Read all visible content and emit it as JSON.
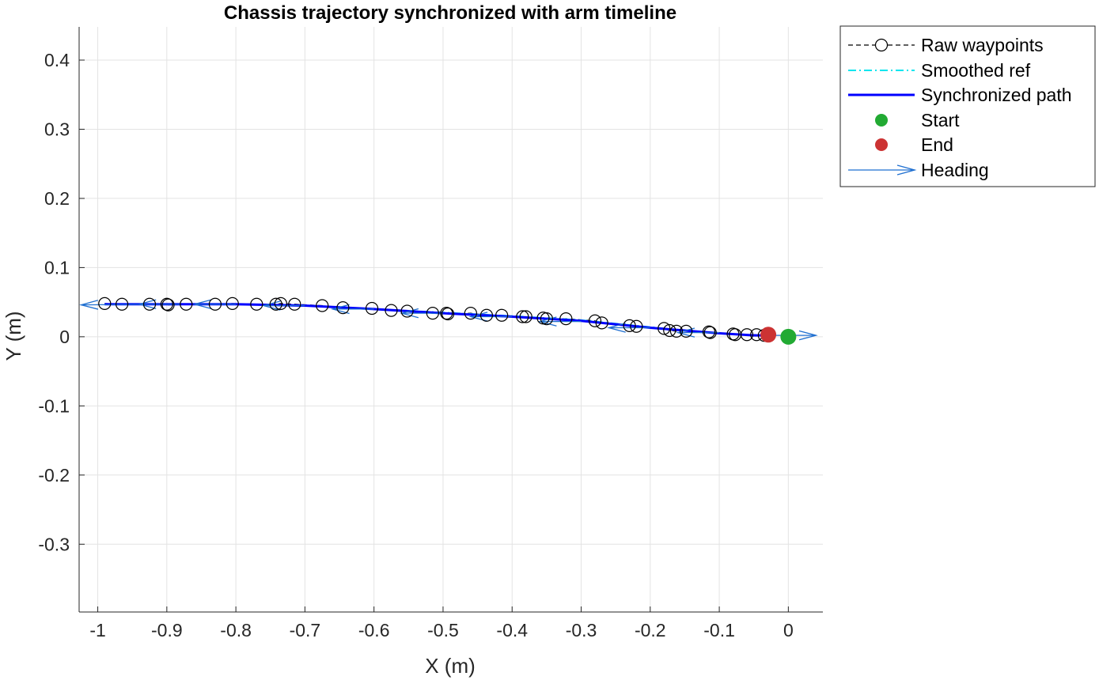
{
  "chart_data": {
    "type": "line",
    "title": "Chassis trajectory synchronized with arm timeline",
    "xlabel": "X (m)",
    "ylabel": "Y (m)",
    "xlim": [
      -1.027,
      0.05
    ],
    "ylim": [
      -0.398,
      0.448
    ],
    "xticks": [
      -1,
      -0.9,
      -0.8,
      -0.7,
      -0.6,
      -0.5,
      -0.4,
      -0.3,
      -0.2,
      -0.1,
      0
    ],
    "xtick_labels": [
      "-1",
      "-0.9",
      "-0.8",
      "-0.7",
      "-0.6",
      "-0.5",
      "-0.4",
      "-0.3",
      "-0.2",
      "-0.1",
      "0"
    ],
    "yticks": [
      -0.3,
      -0.2,
      -0.1,
      0,
      0.1,
      0.2,
      0.3,
      0.4
    ],
    "ytick_labels": [
      "-0.3",
      "-0.2",
      "-0.1",
      "0",
      "0.1",
      "0.2",
      "0.3",
      "0.4"
    ],
    "grid": true,
    "legend_position": "outside-top-right",
    "series": [
      {
        "name": "Raw waypoints",
        "style": "dashed-circle-markers",
        "color": "#000000",
        "x": [
          -0.99,
          -0.965,
          -0.925,
          -0.9,
          -0.898,
          -0.872,
          -0.83,
          -0.805,
          -0.77,
          -0.742,
          -0.735,
          -0.715,
          -0.675,
          -0.645,
          -0.603,
          -0.575,
          -0.552,
          -0.515,
          -0.495,
          -0.493,
          -0.46,
          -0.437,
          -0.415,
          -0.385,
          -0.38,
          -0.355,
          -0.35,
          -0.322,
          -0.28,
          -0.27,
          -0.23,
          -0.22,
          -0.18,
          -0.172,
          -0.162,
          -0.148,
          -0.115,
          -0.113,
          -0.08,
          -0.077,
          -0.06,
          -0.046,
          -0.035
        ],
        "y": [
          0.048,
          0.047,
          0.047,
          0.047,
          0.046,
          0.047,
          0.047,
          0.048,
          0.047,
          0.047,
          0.048,
          0.047,
          0.045,
          0.042,
          0.041,
          0.038,
          0.037,
          0.034,
          0.034,
          0.033,
          0.034,
          0.031,
          0.031,
          0.029,
          0.029,
          0.027,
          0.026,
          0.026,
          0.023,
          0.02,
          0.016,
          0.015,
          0.012,
          0.009,
          0.008,
          0.008,
          0.007,
          0.006,
          0.004,
          0.003,
          0.003,
          0.003,
          0.002
        ]
      },
      {
        "name": "Smoothed ref",
        "style": "dash-dot",
        "color": "#00e5ee",
        "x": [
          -0.99,
          -0.9,
          -0.8,
          -0.7,
          -0.6,
          -0.5,
          -0.4,
          -0.3,
          -0.2,
          -0.15,
          -0.1,
          -0.05,
          -0.03
        ],
        "y": [
          0.047,
          0.047,
          0.047,
          0.045,
          0.04,
          0.035,
          0.03,
          0.024,
          0.014,
          0.009,
          0.005,
          0.002,
          0.002
        ]
      },
      {
        "name": "Synchronized path",
        "style": "solid",
        "color": "#0000ff",
        "x": [
          -0.99,
          -0.9,
          -0.8,
          -0.7,
          -0.6,
          -0.5,
          -0.4,
          -0.3,
          -0.2,
          -0.15,
          -0.1,
          -0.05,
          -0.03
        ],
        "y": [
          0.047,
          0.047,
          0.047,
          0.045,
          0.04,
          0.034,
          0.029,
          0.023,
          0.013,
          0.009,
          0.005,
          0.002,
          0.002
        ]
      },
      {
        "name": "Start",
        "style": "filled-marker",
        "color": "#22aa33",
        "x": [
          0
        ],
        "y": [
          0
        ]
      },
      {
        "name": "End",
        "style": "filled-marker",
        "color": "#cc3333",
        "x": [
          -0.029
        ],
        "y": [
          0.003
        ]
      },
      {
        "name": "Heading",
        "style": "quiver",
        "color": "#1f6fd0",
        "x": [
          -0.02,
          -0.1,
          -0.2,
          -0.3,
          -0.4,
          -0.5,
          -0.6,
          -0.7,
          -0.8,
          -0.88
        ],
        "y": [
          0.002,
          0.006,
          0.013,
          0.022,
          0.029,
          0.034,
          0.04,
          0.045,
          0.047,
          0.047
        ],
        "u": [
          0.06,
          -0.06,
          -0.06,
          -0.06,
          -0.06,
          -0.06,
          -0.06,
          -0.06,
          -0.06,
          -0.06
        ],
        "v": [
          0,
          0,
          0,
          0,
          0,
          0,
          0,
          0,
          0,
          0
        ],
        "extra_arrow": {
          "x": -0.93,
          "y": 0.047,
          "u": -0.094,
          "v": -0.001
        }
      }
    ]
  }
}
